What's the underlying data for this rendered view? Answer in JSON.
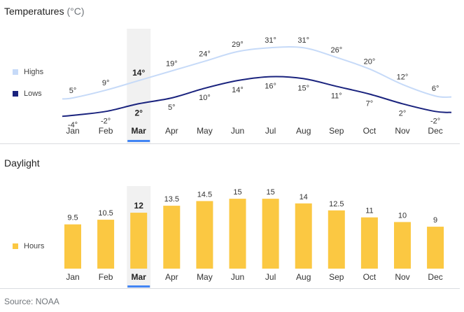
{
  "temperatures": {
    "title": "Temperatures",
    "unit": "(°C)",
    "legend": [
      {
        "name": "Highs",
        "color": "#c6daf8"
      },
      {
        "name": "Lows",
        "color": "#1a237e"
      }
    ]
  },
  "daylight": {
    "title": "Daylight",
    "legend": [
      {
        "name": "Hours",
        "color": "#fbc842"
      }
    ]
  },
  "selected_month": "Mar",
  "source": "Source: NOAA",
  "chart_data": [
    {
      "type": "line",
      "title": "Temperatures (°C)",
      "categories": [
        "Jan",
        "Feb",
        "Mar",
        "Apr",
        "May",
        "Jun",
        "Jul",
        "Aug",
        "Sep",
        "Oct",
        "Nov",
        "Dec"
      ],
      "series": [
        {
          "name": "Highs",
          "values": [
            5,
            9,
            14,
            19,
            24,
            29,
            31,
            31,
            26,
            20,
            12,
            6
          ],
          "color": "#c6daf8"
        },
        {
          "name": "Lows",
          "values": [
            -4,
            -2,
            2,
            5,
            10,
            14,
            16,
            15,
            11,
            7,
            2,
            -2
          ],
          "color": "#1a237e"
        }
      ],
      "highlight": "Mar",
      "legend": "left"
    },
    {
      "type": "bar",
      "title": "Daylight",
      "categories": [
        "Jan",
        "Feb",
        "Mar",
        "Apr",
        "May",
        "Jun",
        "Jul",
        "Aug",
        "Sep",
        "Oct",
        "Nov",
        "Dec"
      ],
      "series": [
        {
          "name": "Hours",
          "values": [
            9.5,
            10.5,
            12,
            13.5,
            14.5,
            15,
            15,
            14,
            12.5,
            11,
            10,
            9
          ],
          "color": "#fbc842"
        }
      ],
      "highlight": "Mar",
      "legend": "left"
    }
  ]
}
